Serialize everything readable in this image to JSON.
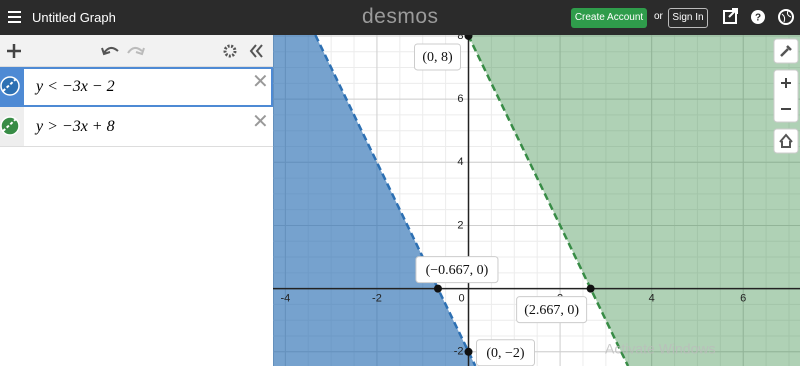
{
  "header": {
    "title": "Untitled Graph",
    "logo": "desmos",
    "create_account": "Create Account",
    "or": "or",
    "sign_in": "Sign In"
  },
  "expressions": [
    {
      "text": "y < −3x − 2",
      "color": "#2d70b3"
    },
    {
      "text": "y > −3x + 8",
      "color": "#388c46"
    }
  ],
  "graph": {
    "xlim": [
      -4.27,
      7.24
    ],
    "ylim": [
      -2.45,
      8.03
    ],
    "xticks": [
      -4,
      -2,
      0,
      2,
      4,
      6
    ],
    "yticks": [
      -2,
      2,
      4,
      6,
      8
    ],
    "points": [
      {
        "label": "(0, 8)",
        "x": 0,
        "y": 8
      },
      {
        "label": "(−0.667, 0)",
        "x": -0.667,
        "y": 0
      },
      {
        "label": "(2.667, 0)",
        "x": 2.667,
        "y": 0
      },
      {
        "label": "(0, −2)",
        "x": 0,
        "y": -2
      }
    ],
    "watermark": "Activate Windows"
  }
}
